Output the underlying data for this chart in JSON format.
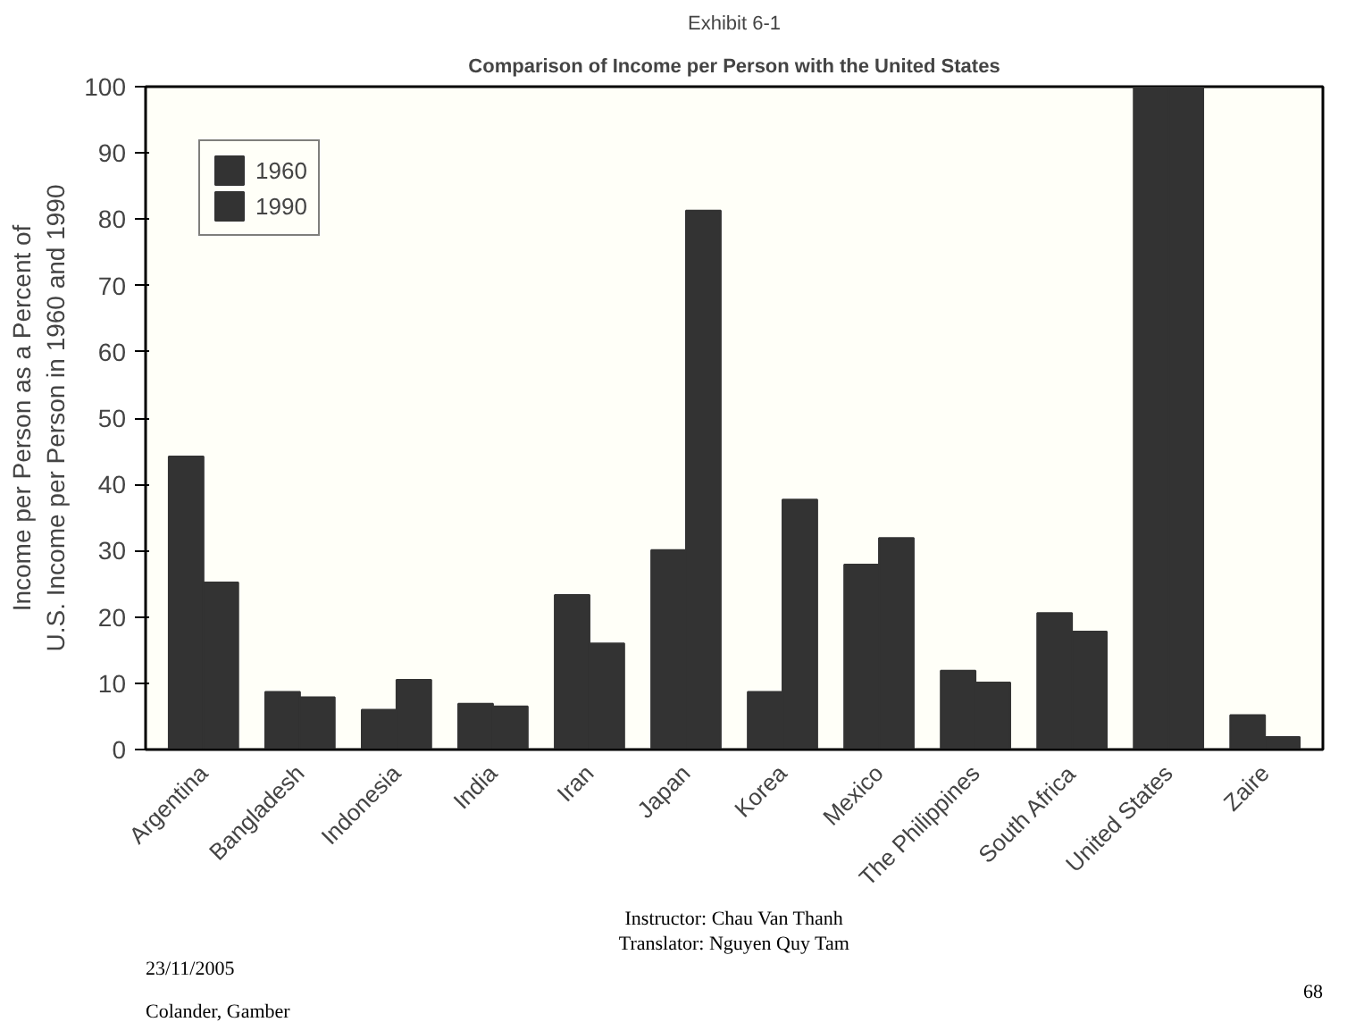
{
  "chart_data": {
    "type": "bar",
    "title": "Exhibit 6-1",
    "subtitle": "Comparison of Income per Person with the United States",
    "ylabel": "Income per Person as a Percent of\nU.S. Income per Person in 1960 and 1990",
    "categories": [
      "Argentina",
      "Bangladesh",
      "Indonesia",
      "India",
      "Iran",
      "Japan",
      "Korea",
      "Mexico",
      "The Philippines",
      "South Africa",
      "United States",
      "Zaire"
    ],
    "series": [
      {
        "name": "1960",
        "color": "#333333",
        "values": [
          44.2,
          8.7,
          6.0,
          6.9,
          23.3,
          30.1,
          8.7,
          27.9,
          11.9,
          20.6,
          100,
          5.2
        ]
      },
      {
        "name": "1990",
        "color": "#333333",
        "values": [
          25.2,
          7.9,
          10.5,
          6.5,
          16.0,
          81.3,
          37.7,
          31.9,
          10.1,
          17.8,
          100,
          1.9
        ]
      }
    ],
    "ylim": [
      0,
      100
    ],
    "yticks": [
      0,
      10,
      20,
      30,
      40,
      50,
      60,
      70,
      80,
      90,
      100
    ],
    "grid": false,
    "legend": "top left",
    "annotations": [
      "23/11/2005",
      "Colander, Gamber",
      "Instructor: Chau Van Thanh",
      "Translator: Nguyen Quy Tam",
      "68"
    ]
  }
}
